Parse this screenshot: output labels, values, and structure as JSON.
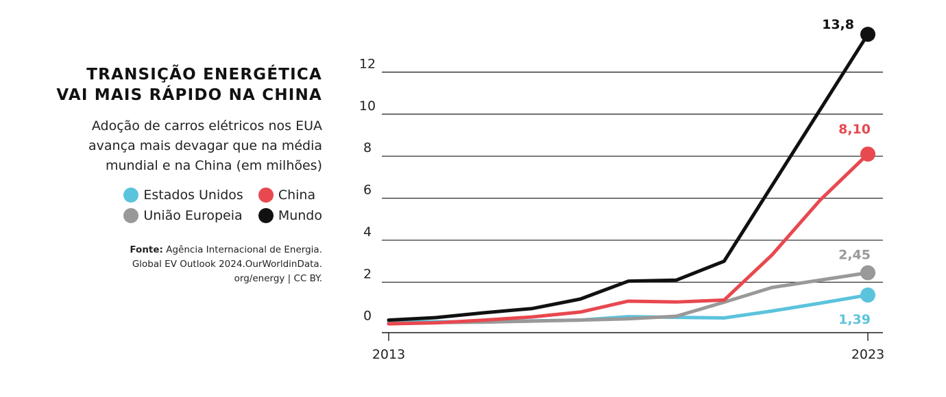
{
  "title_lines": [
    "Transição energética",
    "vai mais rápido na China"
  ],
  "subtitle_lines": [
    "Adoção de carros elétricos nos EUA",
    "avança mais devagar que na média",
    "mundial e na China (em milhões)"
  ],
  "source": {
    "label": "Fonte:",
    "lines": [
      "Agência Internacional de Energia.",
      "Global EV Outlook 2024.OurWorldinData.",
      "org/energy | CC BY."
    ]
  },
  "colors": {
    "estados_unidos": "#5bc3dc",
    "china": "#e8484f",
    "uniao_europeia": "#999999",
    "mundo": "#111111"
  },
  "chart_data": {
    "type": "line",
    "x": [
      2013,
      2014,
      2015,
      2016,
      2017,
      2018,
      2019,
      2020,
      2021,
      2022,
      2023
    ],
    "x_tick_labels": [
      "2013",
      "2023"
    ],
    "y_ticks": [
      0,
      2,
      4,
      6,
      8,
      10,
      12
    ],
    "ylim": [
      -0.4,
      14
    ],
    "grid": "horizontal",
    "legend_position": "left",
    "series": [
      {
        "name": "Estados Unidos",
        "color_key": "estados_unidos",
        "values": [
          0.1,
          0.12,
          0.11,
          0.16,
          0.2,
          0.36,
          0.33,
          0.3,
          0.63,
          1.0,
          1.39
        ],
        "end_label": "1,39"
      },
      {
        "name": "União Europeia",
        "color_key": "uniao_europeia",
        "values": [
          0.05,
          0.08,
          0.1,
          0.15,
          0.2,
          0.26,
          0.38,
          1.05,
          1.75,
          2.1,
          2.45
        ],
        "end_label": "2,45"
      },
      {
        "name": "China",
        "color_key": "china",
        "values": [
          0.02,
          0.07,
          0.2,
          0.35,
          0.58,
          1.1,
          1.06,
          1.15,
          3.3,
          5.9,
          8.1
        ],
        "end_label": "8,10"
      },
      {
        "name": "Mundo",
        "color_key": "mundo",
        "values": [
          0.2,
          0.32,
          0.55,
          0.75,
          1.2,
          2.05,
          2.1,
          3.0,
          6.6,
          10.2,
          13.8
        ],
        "end_label": "13,8"
      }
    ]
  },
  "legend": [
    {
      "label": "Estados Unidos",
      "color_key": "estados_unidos"
    },
    {
      "label": "China",
      "color_key": "china"
    },
    {
      "label": "União Europeia",
      "color_key": "uniao_europeia"
    },
    {
      "label": "Mundo",
      "color_key": "mundo"
    }
  ]
}
